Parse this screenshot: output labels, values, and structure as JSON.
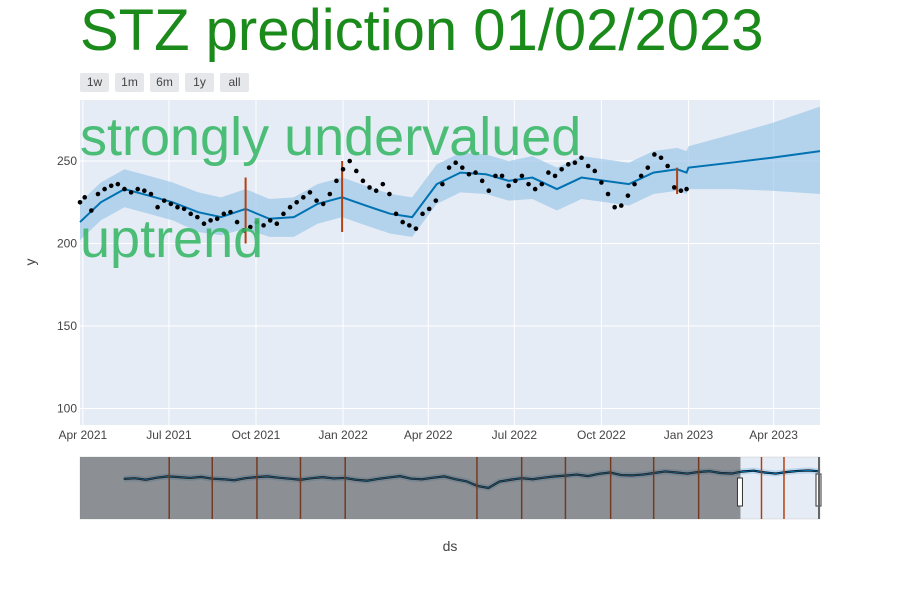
{
  "title": "STZ prediction 01/02/2023",
  "range_buttons": [
    "1w",
    "1m",
    "6m",
    "1y",
    "all"
  ],
  "annotations": [
    "strongly undervalued",
    "uptrend"
  ],
  "colors": {
    "title": "#1a8a1a",
    "annotation": "#3cb86a",
    "forecast_line": "#0072b2",
    "band": "#9ec8e8",
    "points": "#000000",
    "events": "#b5400f",
    "plot_bg": "#e5ecf6"
  },
  "chart_data": {
    "type": "line",
    "xlabel": "ds",
    "ylabel": "y",
    "x_ticks": [
      "Apr 2021",
      "Jul 2021",
      "Oct 2021",
      "Jan 2022",
      "Apr 2022",
      "Jul 2022",
      "Oct 2022",
      "Jan 2023",
      "Apr 2023"
    ],
    "x_tick_dates": [
      "2021-04-01",
      "2021-07-01",
      "2021-10-01",
      "2022-01-01",
      "2022-04-01",
      "2022-07-01",
      "2022-10-01",
      "2023-01-01",
      "2023-04-01"
    ],
    "y_ticks": [
      100,
      150,
      200,
      250
    ],
    "xlim": [
      "2021-03-29",
      "2023-05-20"
    ],
    "ylim": [
      90,
      287
    ],
    "grid": true,
    "series": [
      {
        "kind": "forecast",
        "x": [
          "2021-03-29",
          "2021-04-20",
          "2021-05-15",
          "2021-06-10",
          "2021-07-05",
          "2021-08-01",
          "2021-08-25",
          "2021-09-20",
          "2021-10-15",
          "2021-11-10",
          "2021-12-05",
          "2021-12-31",
          "2022-01-25",
          "2022-02-20",
          "2022-03-15",
          "2022-04-10",
          "2022-05-05",
          "2022-06-01",
          "2022-06-25",
          "2022-07-20",
          "2022-08-15",
          "2022-09-10",
          "2022-10-05",
          "2022-10-30",
          "2022-11-25",
          "2022-12-20",
          "2022-12-30",
          "2023-01-01",
          "2023-02-15",
          "2023-03-30",
          "2023-05-20"
        ],
        "yhat": [
          213,
          225,
          233,
          229,
          225,
          219,
          216,
          221,
          215,
          216,
          224,
          228,
          223,
          218,
          216,
          236,
          243,
          242,
          238,
          240,
          233,
          240,
          238,
          236,
          243,
          245,
          243,
          246,
          249,
          252,
          256
        ],
        "lower": [
          202,
          214,
          222,
          218,
          214,
          207,
          205,
          209,
          204,
          204,
          212,
          216,
          211,
          206,
          204,
          224,
          231,
          230,
          226,
          227,
          220,
          227,
          225,
          223,
          230,
          232,
          230,
          233,
          233,
          232,
          230
        ],
        "upper": [
          225,
          237,
          245,
          241,
          237,
          231,
          228,
          233,
          227,
          228,
          236,
          240,
          235,
          230,
          228,
          248,
          255,
          254,
          250,
          253,
          246,
          253,
          251,
          249,
          256,
          258,
          256,
          259,
          266,
          273,
          283
        ]
      },
      {
        "kind": "actual",
        "x": [
          "2021-03-29",
          "2021-04-03",
          "2021-04-10",
          "2021-04-17",
          "2021-04-24",
          "2021-05-01",
          "2021-05-08",
          "2021-05-15",
          "2021-05-22",
          "2021-05-29",
          "2021-06-05",
          "2021-06-12",
          "2021-06-19",
          "2021-06-26",
          "2021-07-03",
          "2021-07-10",
          "2021-07-17",
          "2021-07-24",
          "2021-07-31",
          "2021-08-07",
          "2021-08-14",
          "2021-08-21",
          "2021-08-28",
          "2021-09-04",
          "2021-09-11",
          "2021-09-18",
          "2021-09-25",
          "2021-10-02",
          "2021-10-09",
          "2021-10-16",
          "2021-10-23",
          "2021-10-30",
          "2021-11-06",
          "2021-11-13",
          "2021-11-20",
          "2021-11-27",
          "2021-12-04",
          "2021-12-11",
          "2021-12-18",
          "2021-12-25",
          "2022-01-01",
          "2022-01-08",
          "2022-01-15",
          "2022-01-22",
          "2022-01-29",
          "2022-02-05",
          "2022-02-12",
          "2022-02-19",
          "2022-02-26",
          "2022-03-05",
          "2022-03-12",
          "2022-03-19",
          "2022-03-26",
          "2022-04-02",
          "2022-04-09",
          "2022-04-16",
          "2022-04-23",
          "2022-04-30",
          "2022-05-07",
          "2022-05-14",
          "2022-05-21",
          "2022-05-28",
          "2022-06-04",
          "2022-06-11",
          "2022-06-18",
          "2022-06-25",
          "2022-07-02",
          "2022-07-09",
          "2022-07-16",
          "2022-07-23",
          "2022-07-30",
          "2022-08-06",
          "2022-08-13",
          "2022-08-20",
          "2022-08-27",
          "2022-09-03",
          "2022-09-10",
          "2022-09-17",
          "2022-09-24",
          "2022-10-01",
          "2022-10-08",
          "2022-10-15",
          "2022-10-22",
          "2022-10-29",
          "2022-11-05",
          "2022-11-12",
          "2022-11-19",
          "2022-11-26",
          "2022-12-03",
          "2022-12-10",
          "2022-12-17",
          "2022-12-24",
          "2022-12-30"
        ],
        "y": [
          225,
          228,
          220,
          230,
          233,
          235,
          236,
          233,
          231,
          233,
          232,
          230,
          222,
          226,
          224,
          222,
          221,
          218,
          216,
          212,
          214,
          215,
          218,
          219,
          213,
          208,
          210,
          213,
          211,
          214,
          212,
          218,
          222,
          225,
          228,
          231,
          226,
          224,
          230,
          238,
          245,
          250,
          244,
          238,
          234,
          232,
          236,
          230,
          218,
          213,
          211,
          209,
          218,
          221,
          226,
          236,
          246,
          249,
          246,
          242,
          243,
          238,
          232,
          241,
          241,
          235,
          238,
          241,
          236,
          233,
          236,
          243,
          241,
          245,
          248,
          249,
          252,
          247,
          244,
          237,
          230,
          222,
          223,
          229,
          236,
          241,
          246,
          254,
          252,
          247,
          234,
          232,
          233
        ]
      }
    ],
    "events": [
      {
        "date": "2021-09-20",
        "y_low": 200,
        "y_high": 240
      },
      {
        "date": "2021-12-31",
        "y_low": 207,
        "y_high": 250
      },
      {
        "date": "2022-12-20",
        "y_low": 230,
        "y_high": 246
      }
    ],
    "range_slider": {
      "selected_start": "2022-06-25",
      "selected_end": "2023-05-20",
      "full_start": "2015-01-01",
      "full_end": "2023-05-20",
      "ylim": [
        60,
        300
      ],
      "events": [
        "2016-01-05",
        "2016-07-01",
        "2017-01-02",
        "2017-07-01",
        "2018-01-02",
        "2019-07-01",
        "2020-01-02",
        "2020-07-01",
        "2021-01-04",
        "2021-07-01",
        "2022-01-03",
        "2022-09-20",
        "2022-12-22"
      ],
      "series_y": [
        215,
        218,
        212,
        220,
        225,
        222,
        219,
        223,
        216,
        214,
        210,
        218,
        222,
        225,
        220,
        216,
        212,
        218,
        222,
        217,
        219,
        212,
        208,
        215,
        221,
        226,
        216,
        214,
        220,
        225,
        214,
        206,
        188,
        180,
        205,
        212,
        218,
        214,
        220,
        225,
        228,
        232,
        226,
        235,
        240,
        230,
        229,
        232,
        238,
        244,
        240,
        236,
        242,
        245,
        238,
        236,
        244,
        247,
        240,
        236,
        242,
        246,
        248,
        244
      ]
    }
  }
}
